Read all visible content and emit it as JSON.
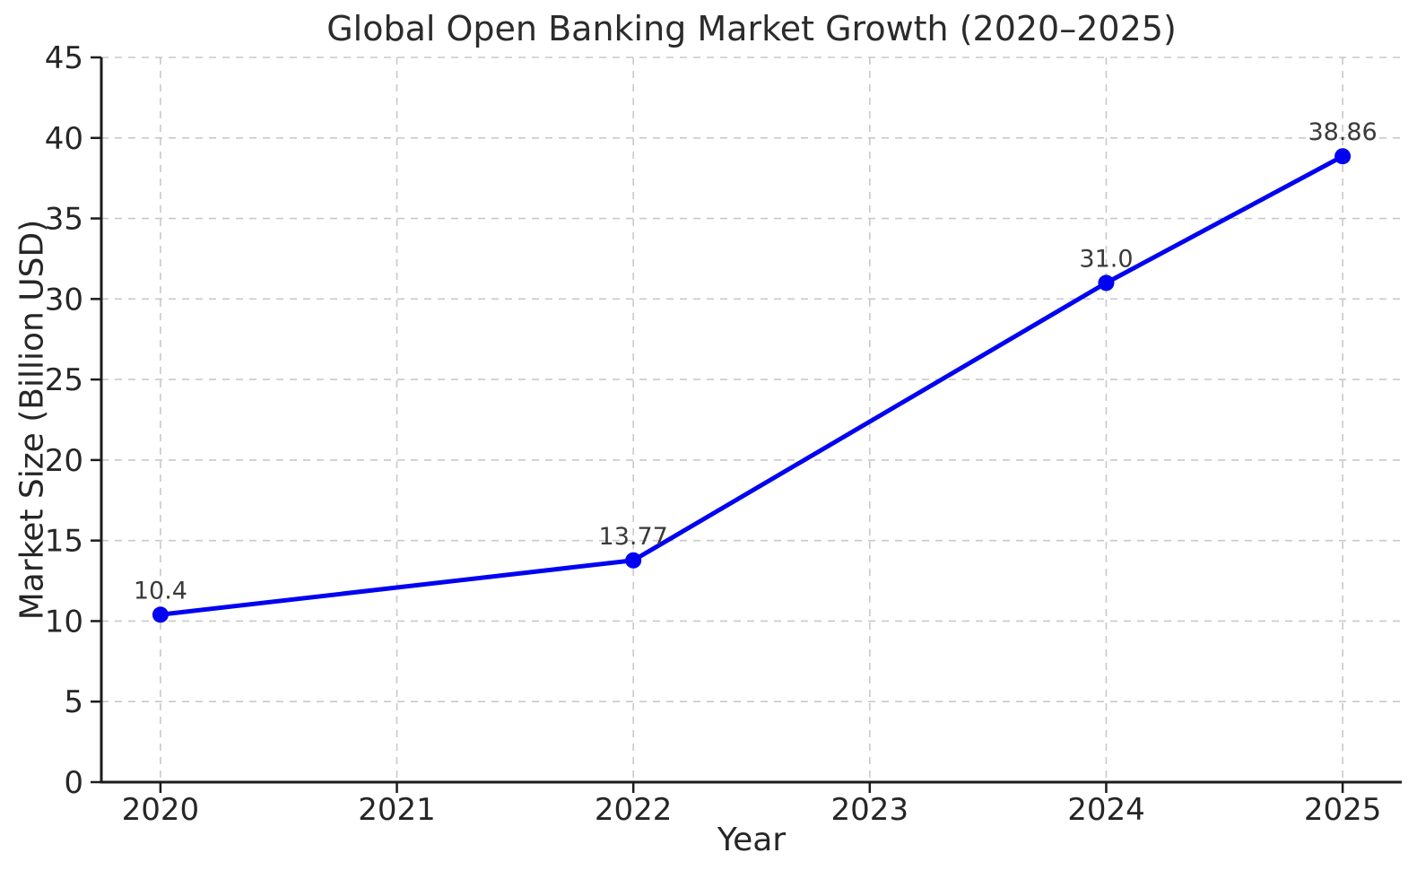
{
  "chart_data": {
    "type": "line",
    "title": "Global Open Banking Market Growth (2020–2025)",
    "xlabel": "Year",
    "ylabel": "Market Size (Billion USD)",
    "x": [
      2020,
      2022,
      2024,
      2025
    ],
    "values": [
      10.4,
      13.77,
      31.0,
      38.86
    ],
    "point_labels": [
      "10.4",
      "13.77",
      "31.0",
      "38.86"
    ],
    "x_ticks": [
      2020,
      2021,
      2022,
      2023,
      2024,
      2025
    ],
    "y_ticks": [
      0,
      5,
      10,
      15,
      20,
      25,
      30,
      35,
      40,
      45
    ],
    "xlim": [
      2019.75,
      2025.25
    ],
    "ylim": [
      0,
      45
    ],
    "grid": true,
    "legend": "none",
    "line_color": "#0202f2",
    "marker": "circle",
    "marker_radius": 9,
    "line_width": 5,
    "grid_color": "#c9c9c9",
    "axis_color": "#1c1c1c",
    "tick_label_color": "#262626",
    "annotation_color": "#3a3a3a"
  }
}
